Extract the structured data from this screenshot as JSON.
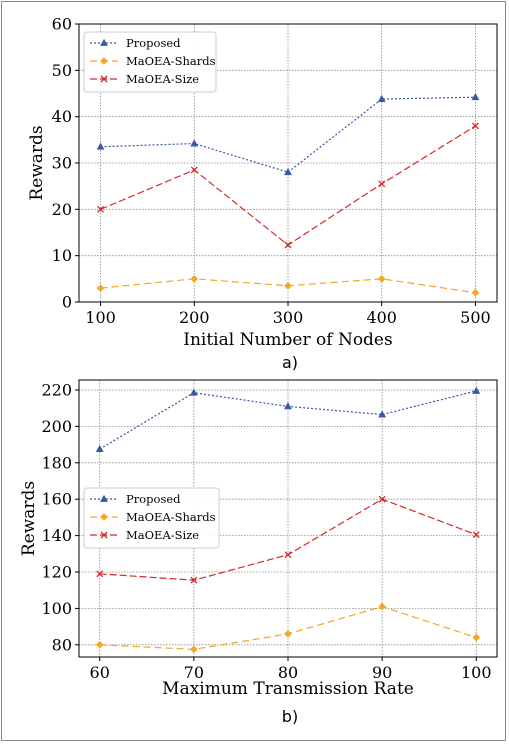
{
  "chart_data": [
    {
      "type": "line",
      "caption": "a)",
      "xlabel": "Initial Number of Nodes",
      "ylabel": "Rewards",
      "x": [
        100,
        200,
        300,
        400,
        500
      ],
      "xticks": [
        100,
        200,
        300,
        400,
        500
      ],
      "yticks": [
        0,
        10,
        20,
        30,
        40,
        50,
        60
      ],
      "xlim": [
        77,
        523
      ],
      "ylim": [
        0,
        60
      ],
      "grid": true,
      "legend_position": "upper-left",
      "series": [
        {
          "name": "Proposed",
          "values": [
            33.5,
            34.2,
            28.0,
            43.8,
            44.2
          ],
          "color": "#3a57a8",
          "dash": "2,2",
          "marker": "triangle"
        },
        {
          "name": "MaOEA-Shards",
          "values": [
            3.0,
            5.0,
            3.5,
            5.0,
            2.0
          ],
          "color": "#f5a623",
          "dash": "7,4",
          "marker": "diamond"
        },
        {
          "name": "MaOEA-Size",
          "values": [
            20.0,
            28.5,
            12.3,
            25.5,
            38.0
          ],
          "color": "#d62728",
          "dash": "7,3",
          "marker": "x"
        }
      ]
    },
    {
      "type": "line",
      "caption": "b)",
      "xlabel": "Maximum Transmission Rate",
      "ylabel": "Rewards",
      "x": [
        60,
        70,
        80,
        90,
        100
      ],
      "xticks": [
        60,
        70,
        80,
        90,
        100
      ],
      "yticks": [
        80,
        100,
        120,
        140,
        160,
        180,
        200,
        220
      ],
      "xlim": [
        57.8,
        102.2
      ],
      "ylim": [
        73.3,
        225.5
      ],
      "grid": true,
      "legend_position": "center-left",
      "series": [
        {
          "name": "Proposed",
          "values": [
            187.5,
            218.5,
            211.0,
            206.5,
            219.5
          ],
          "color": "#3a57a8",
          "dash": "2,2",
          "marker": "triangle"
        },
        {
          "name": "MaOEA-Shards",
          "values": [
            80.0,
            77.5,
            86.0,
            101.0,
            84.0
          ],
          "color": "#f5a623",
          "dash": "7,4",
          "marker": "diamond"
        },
        {
          "name": "MaOEA-Size",
          "values": [
            119.0,
            115.5,
            129.5,
            160.0,
            140.5
          ],
          "color": "#d62728",
          "dash": "7,3",
          "marker": "x"
        }
      ]
    }
  ]
}
